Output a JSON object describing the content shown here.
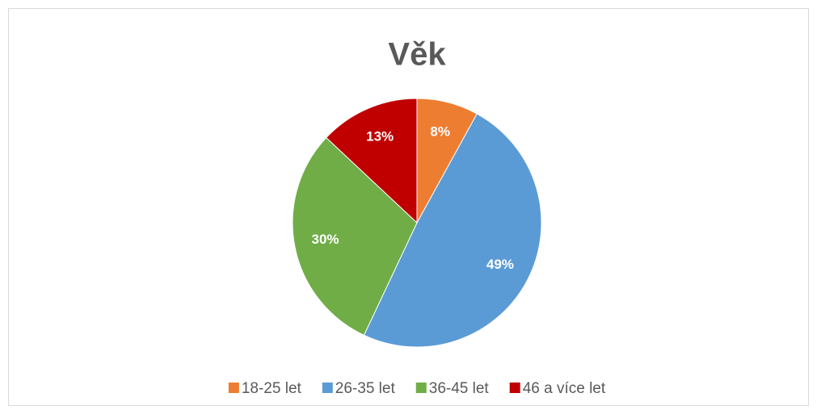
{
  "chart_data": {
    "type": "pie",
    "title": "Věk",
    "categories": [
      "18-25 let",
      "26-35 let",
      "36-45 let",
      "46 a více let"
    ],
    "values": [
      8,
      49,
      30,
      13
    ],
    "value_labels": [
      "8%",
      "49%",
      "30%",
      "13%"
    ],
    "colors": [
      "#ed7d31",
      "#5b9bd5",
      "#70ad47",
      "#c00000"
    ],
    "legend": "bottom"
  }
}
